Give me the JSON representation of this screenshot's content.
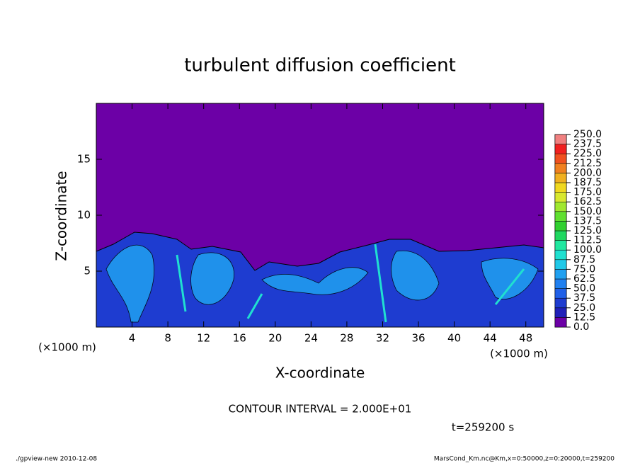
{
  "chart_data": {
    "type": "contour",
    "title": "turbulent diffusion coefficient",
    "xlabel": "X-coordinate",
    "ylabel": "Z-coordinate",
    "x_unit": "(×1000 m)",
    "xlim": [
      0,
      50
    ],
    "xticks": [
      4,
      8,
      12,
      16,
      20,
      24,
      28,
      32,
      36,
      40,
      44,
      48
    ],
    "ylim": [
      0,
      20
    ],
    "yticks": [
      5,
      10,
      15
    ],
    "colorbar_levels": [
      {
        "value": 0,
        "label": "0.0"
      },
      12.5,
      {
        "value": 25,
        "label": "25.0"
      },
      37.5,
      {
        "value": 50,
        "label": "50.0"
      },
      62.5,
      {
        "value": 75,
        "label": "75.0"
      },
      87.5,
      {
        "value": 100,
        "label": "100.0"
      },
      112.5,
      {
        "value": 125,
        "label": "125.0"
      },
      137.5,
      {
        "value": 150,
        "label": "150.0"
      },
      162.5,
      {
        "value": 175,
        "label": "175.0"
      },
      187.5,
      {
        "value": 200,
        "label": "200.0"
      },
      212.5,
      {
        "value": 225,
        "label": "225.0"
      },
      237.5,
      {
        "value": 250,
        "label": "250.0"
      }
    ],
    "colorbar_colors": [
      "#6c00a6",
      "#2020b8",
      "#1e3cd0",
      "#2060e8",
      "#2080f0",
      "#20a0f0",
      "#20c8e8",
      "#20e0d0",
      "#20e8a0",
      "#20d860",
      "#30d030",
      "#60e030",
      "#a0e830",
      "#d8e830",
      "#f0d820",
      "#f0b020",
      "#f08020",
      "#f05020",
      "#f02020",
      "#f08080"
    ],
    "contour_interval": "CONTOUR INTERVAL = 2.000E+01",
    "time_label": "t=259200 s",
    "footer_left": "./gpview-new   2010-12-08",
    "footer_right": "MarsCond_Km.nc@Km,x=0:50000,z=0:20000,t=259200"
  }
}
